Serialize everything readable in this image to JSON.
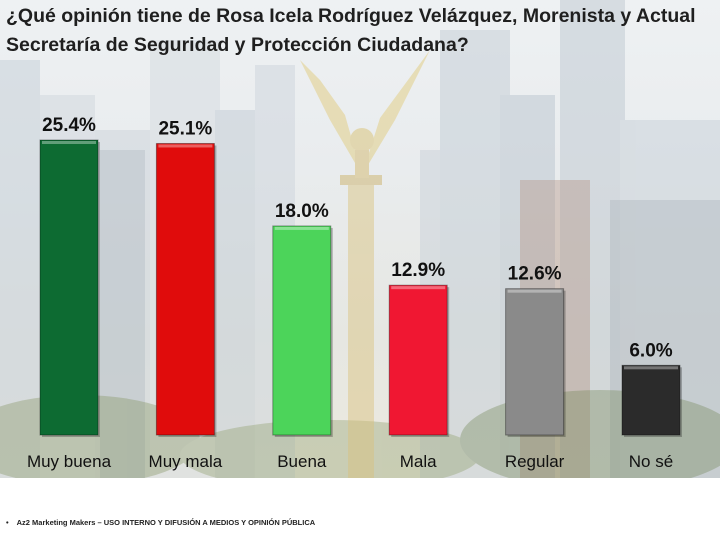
{
  "chart_data": {
    "type": "bar",
    "title_lines": [
      "¿Qué opinión tiene de Rosa Icela Rodríguez Velázquez, Morenista y Actual",
      "Secretaría de Seguridad y Protección Ciudadana?"
    ],
    "categories": [
      "Muy buena",
      "Muy mala",
      "Buena",
      "Mala",
      "Regular",
      "No sé"
    ],
    "values": [
      25.4,
      25.1,
      18.0,
      12.9,
      12.6,
      6.0
    ],
    "value_labels": [
      "25.4%",
      "25.1%",
      "18.0%",
      "12.9%",
      "12.6%",
      "6.0%"
    ],
    "colors": [
      "#0d6b32",
      "#e00c0c",
      "#4cd45a",
      "#f01732",
      "#8a8a8a",
      "#2b2b2b"
    ],
    "ylim": [
      0,
      25.4
    ],
    "grid": false,
    "legend": "none"
  },
  "footer": {
    "bullet": "•",
    "text": "Az2 Marketing Makers – USO INTERNO Y DIFUSIÓN A MEDIOS Y OPINIÓN PÚBLICA"
  }
}
